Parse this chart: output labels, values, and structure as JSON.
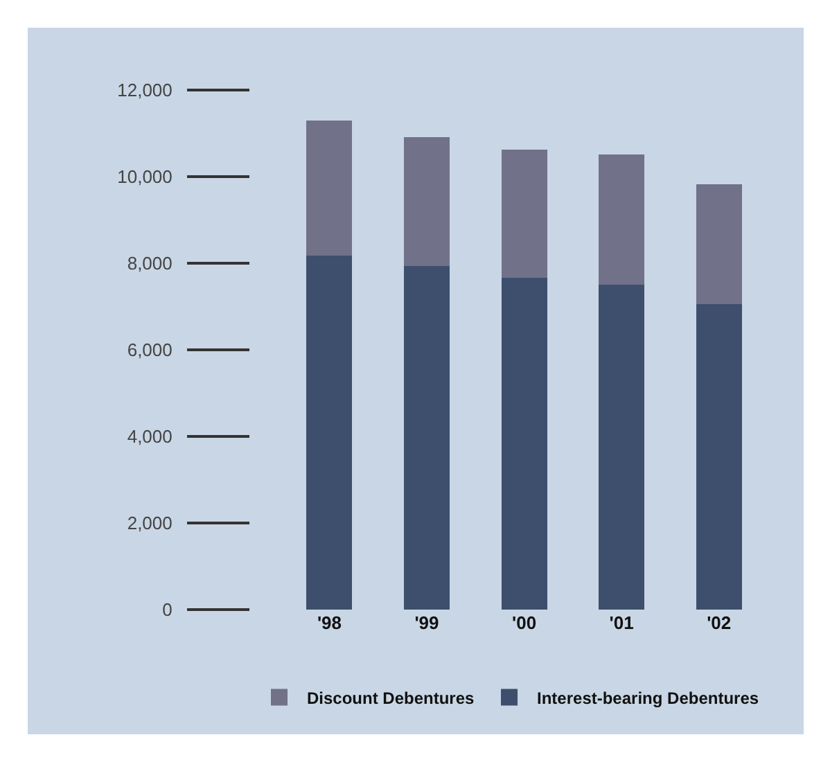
{
  "chart_data": {
    "type": "bar",
    "stacked": true,
    "categories": [
      "'98",
      "'99",
      "'00",
      "'01",
      "'02"
    ],
    "series": [
      {
        "name": "Interest-bearing Debentures",
        "color": "#3d4f6d",
        "values": [
          8180,
          7930,
          7660,
          7500,
          7050
        ]
      },
      {
        "name": "Discount Debentures",
        "color": "#71718a",
        "values": [
          3120,
          2990,
          2960,
          3020,
          2770
        ]
      }
    ],
    "ylim": [
      0,
      12000
    ],
    "yticks": [
      {
        "value": 0,
        "label": "0"
      },
      {
        "value": 2000,
        "label": "2,000"
      },
      {
        "value": 4000,
        "label": "4,000"
      },
      {
        "value": 6000,
        "label": "6,000"
      },
      {
        "value": 8000,
        "label": "8,000"
      },
      {
        "value": 10000,
        "label": "10,000"
      },
      {
        "value": 12000,
        "label": "12,000"
      }
    ],
    "grid": false,
    "legend": "bottom"
  }
}
